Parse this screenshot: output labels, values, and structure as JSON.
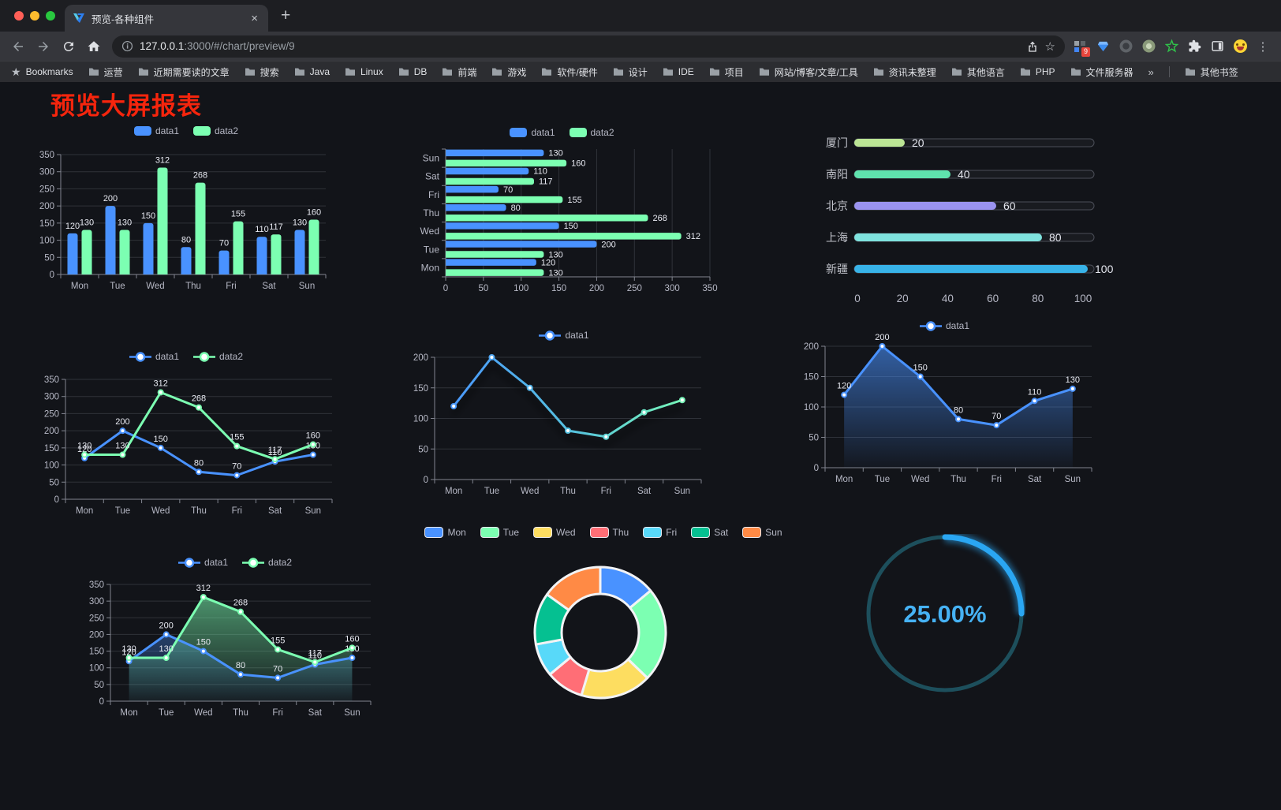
{
  "browser": {
    "tab": {
      "title": "预览-各种组件",
      "close_label": "×",
      "new_tab_label": "+"
    },
    "url": {
      "host": "127.0.0.1",
      "rest": ":3000/#/chart/preview/9"
    },
    "bookmarks_label": "Bookmarks",
    "bookmarks": [
      "运营",
      "近期需要读的文章",
      "搜索",
      "Java",
      "Linux",
      "DB",
      "前端",
      "游戏",
      "软件/硬件",
      "设计",
      "IDE",
      "项目",
      "网站/博客/文章/工具",
      "资讯未整理",
      "其他语言",
      "PHP",
      "文件服务器"
    ],
    "bookmarks_overflow": "»",
    "other_bookmarks": "其他书签",
    "extension_badge": "9"
  },
  "page": {
    "title": "预览大屏报表"
  },
  "palette": {
    "blue": "#4992ff",
    "green": "#7cffb2",
    "yellow": "#fddd60",
    "red": "#ff6e76",
    "skyblue": "#58d9f9",
    "teal": "#05c091",
    "orange": "#ff8a45",
    "axis_label": "#b6b8c5",
    "value_label": "#e8eaf2",
    "title_red": "#f5250d",
    "gauge_track": "#1d4f5c",
    "gauge_arc": "#2aa6f2",
    "gauge_text": "#46b2f4"
  },
  "chart_data": [
    {
      "type": "bar",
      "title": "",
      "categories": [
        "Mon",
        "Tue",
        "Wed",
        "Thu",
        "Fri",
        "Sat",
        "Sun"
      ],
      "series": [
        {
          "name": "data1",
          "color": "#4992ff",
          "values": [
            120,
            200,
            150,
            80,
            70,
            110,
            130
          ]
        },
        {
          "name": "data2",
          "color": "#7cffb2",
          "values": [
            130,
            130,
            312,
            268,
            155,
            117,
            160
          ]
        }
      ],
      "ylim": [
        0,
        350
      ],
      "ystep": 50,
      "labels": true,
      "legend_position": "top"
    },
    {
      "type": "hbar",
      "title": "",
      "categories": [
        "Mon",
        "Tue",
        "Wed",
        "Thu",
        "Fri",
        "Sat",
        "Sun"
      ],
      "series": [
        {
          "name": "data1",
          "color": "#4992ff",
          "values": [
            120,
            200,
            150,
            80,
            70,
            110,
            130
          ]
        },
        {
          "name": "data2",
          "color": "#7cffb2",
          "values": [
            130,
            130,
            312,
            268,
            155,
            117,
            160
          ]
        }
      ],
      "xlim": [
        0,
        350
      ],
      "xstep": 50,
      "labels": true,
      "legend_position": "top",
      "category_order_top_to_bottom": [
        "Sun",
        "Sat",
        "Fri",
        "Thu",
        "Wed",
        "Tue",
        "Mon"
      ]
    },
    {
      "type": "progress",
      "title": "",
      "categories": [
        "厦门",
        "南阳",
        "北京",
        "上海",
        "新疆"
      ],
      "values": [
        20,
        40,
        60,
        80,
        100
      ],
      "colors": [
        "#bce595",
        "#5fe2ad",
        "#9a93f0",
        "#7fe3de",
        "#38b3e8"
      ],
      "xlim": [
        0,
        100
      ],
      "xstep": 20,
      "labels": true
    },
    {
      "type": "line",
      "title": "",
      "categories": [
        "Mon",
        "Tue",
        "Wed",
        "Thu",
        "Fri",
        "Sat",
        "Sun"
      ],
      "series": [
        {
          "name": "data1",
          "color": "#4992ff",
          "values": [
            120,
            200,
            150,
            80,
            70,
            110,
            130
          ]
        },
        {
          "name": "data2",
          "color": "#7cffb2",
          "values": [
            130,
            130,
            312,
            268,
            155,
            117,
            160
          ]
        }
      ],
      "ylim": [
        0,
        350
      ],
      "ystep": 50,
      "labels": true,
      "area": false,
      "legend_position": "top"
    },
    {
      "type": "line",
      "title": "",
      "categories": [
        "Mon",
        "Tue",
        "Wed",
        "Thu",
        "Fri",
        "Sat",
        "Sun"
      ],
      "series": [
        {
          "name": "data1",
          "color": "#4992ff",
          "color2": "#7cffb2",
          "values": [
            120,
            200,
            150,
            80,
            70,
            110,
            130
          ]
        }
      ],
      "ylim": [
        0,
        200
      ],
      "ystep": 50,
      "labels": false,
      "area": false,
      "gradient_stroke": true,
      "shadow": true,
      "legend_position": "top"
    },
    {
      "type": "line",
      "title": "",
      "categories": [
        "Mon",
        "Tue",
        "Wed",
        "Thu",
        "Fri",
        "Sat",
        "Sun"
      ],
      "series": [
        {
          "name": "data1",
          "color": "#4992ff",
          "values": [
            120,
            200,
            150,
            80,
            70,
            110,
            130
          ]
        }
      ],
      "ylim": [
        0,
        200
      ],
      "ystep": 50,
      "labels": true,
      "area": true,
      "legend_position": "top"
    },
    {
      "type": "line",
      "title": "",
      "categories": [
        "Mon",
        "Tue",
        "Wed",
        "Thu",
        "Fri",
        "Sat",
        "Sun"
      ],
      "series": [
        {
          "name": "data1",
          "color": "#4992ff",
          "values": [
            120,
            200,
            150,
            80,
            70,
            110,
            130
          ]
        },
        {
          "name": "data2",
          "color": "#7cffb2",
          "values": [
            130,
            130,
            312,
            268,
            155,
            117,
            160
          ]
        }
      ],
      "ylim": [
        0,
        350
      ],
      "ystep": 50,
      "labels": true,
      "area": true,
      "legend_position": "top"
    },
    {
      "type": "pie",
      "title": "",
      "categories": [
        "Mon",
        "Tue",
        "Wed",
        "Thu",
        "Fri",
        "Sat",
        "Sun"
      ],
      "values": [
        120,
        200,
        150,
        80,
        70,
        110,
        130
      ],
      "colors": [
        "#4992ff",
        "#7cffb2",
        "#fddd60",
        "#ff6e76",
        "#58d9f9",
        "#05c091",
        "#ff8a45"
      ],
      "legend_position": "top",
      "donut": true
    },
    {
      "type": "gauge",
      "value": 25,
      "label": "25.00%",
      "color": "#2aa6f2",
      "track_color": "#1d4f5c"
    }
  ]
}
